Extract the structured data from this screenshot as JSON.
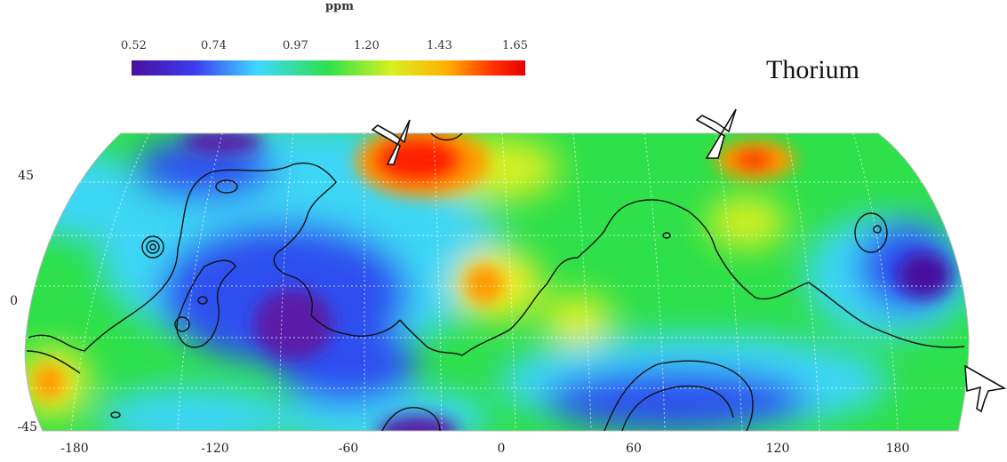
{
  "colorbar": {
    "unit": "ppm",
    "ticks": [
      "0.52",
      "0.74",
      "0.97",
      "1.20",
      "1.43",
      "1.65"
    ],
    "colors": [
      "#4a0f9e",
      "#3c3cf0",
      "#3fd8ff",
      "#2fe04a",
      "#d8f020",
      "#ffb000",
      "#ff3000",
      "#e60000"
    ]
  },
  "map": {
    "title": "Thorium",
    "x_ticks": [
      "-180",
      "-120",
      "-60",
      "0",
      "60",
      "120",
      "180"
    ],
    "y_ticks": [
      "45",
      "0",
      "-45"
    ],
    "markers": [
      "arrow-marker",
      "arrow-marker",
      "arrow-marker"
    ],
    "palette": {
      "violet": "#5a1aa8",
      "blue": "#2d4ff0",
      "cyan": "#3ed6f5",
      "green": "#2ee04a",
      "yellow": "#f0ee25",
      "orange": "#ff9a00",
      "red": "#ff2200"
    }
  }
}
